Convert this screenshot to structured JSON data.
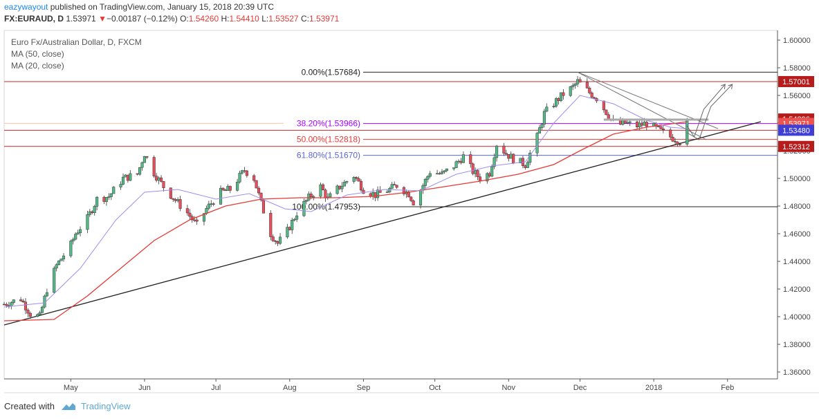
{
  "header": {
    "user": "eazywayout",
    "published": "published on TradingView.com, January 15, 2018 20:39 UTC",
    "symbol": "FX:EURAUD, D",
    "price": "1.53971",
    "change_arrow": "▼",
    "change": "−0.00187 (−0.12%)",
    "o_label": "O:",
    "o": "1.54260",
    "h_label": "H:",
    "h": "1.54410",
    "l_label": "L:",
    "l": "1.53527",
    "c_label": "C:",
    "c": "1.53971"
  },
  "legend": {
    "title": "Euro Fx/Australian Dollar, D, FXCM",
    "ma50": "MA (50, close)",
    "ma20": "MA (20, close)"
  },
  "footer": {
    "created": "Created with",
    "brand": "TradingView"
  },
  "colors": {
    "up": "#53b987",
    "down": "#eb4d5c",
    "ma50": "#e53935",
    "ma20": "#9c8ff0",
    "fib_purple": "#aa00ff",
    "fib_red": "#e53935",
    "fib_blue": "#5b63d6"
  },
  "chart_data": {
    "type": "candlestick",
    "title": "Euro Fx/Australian Dollar, D, FXCM",
    "ylim": [
      1.355,
      1.607
    ],
    "y_ticks": [
      "1.60000",
      "1.58000",
      "1.56000",
      "1.54000",
      "1.52000",
      "1.50000",
      "1.48000",
      "1.46000",
      "1.44000",
      "1.42000",
      "1.40000",
      "1.38000",
      "1.36000"
    ],
    "x_labels": [
      {
        "label": "May",
        "date": "2017-05-01"
      },
      {
        "label": "Jun",
        "date": "2017-06-01"
      },
      {
        "label": "Jul",
        "date": "2017-07-01"
      },
      {
        "label": "Aug",
        "date": "2017-08-01"
      },
      {
        "label": "Sep",
        "date": "2017-09-01"
      },
      {
        "label": "Oct",
        "date": "2017-10-01"
      },
      {
        "label": "Nov",
        "date": "2017-11-01"
      },
      {
        "label": "Dec",
        "date": "2017-12-01"
      },
      {
        "label": "2018",
        "date": "2018-01-01"
      },
      {
        "label": "Feb",
        "date": "2018-02-01"
      }
    ],
    "x_range": [
      "2017-04-03",
      "2018-02-22"
    ],
    "close_path": [
      [
        "2017-04-03",
        1.409
      ],
      [
        "2017-04-10",
        1.413
      ],
      [
        "2017-04-14",
        1.402
      ],
      [
        "2017-04-18",
        1.4
      ],
      [
        "2017-04-21",
        1.42
      ],
      [
        "2017-04-25",
        1.437
      ],
      [
        "2017-05-01",
        1.452
      ],
      [
        "2017-05-03",
        1.46
      ],
      [
        "2017-05-08",
        1.471
      ],
      [
        "2017-05-12",
        1.485
      ],
      [
        "2017-05-17",
        1.487
      ],
      [
        "2017-05-23",
        1.5
      ],
      [
        "2017-05-29",
        1.503
      ],
      [
        "2017-06-01",
        1.518
      ],
      [
        "2017-06-05",
        1.504
      ],
      [
        "2017-06-09",
        1.494
      ],
      [
        "2017-06-13",
        1.486
      ],
      [
        "2017-06-19",
        1.475
      ],
      [
        "2017-06-23",
        1.466
      ],
      [
        "2017-06-27",
        1.478
      ],
      [
        "2017-07-03",
        1.49
      ],
      [
        "2017-07-07",
        1.492
      ],
      [
        "2017-07-13",
        1.506
      ],
      [
        "2017-07-17",
        1.5
      ],
      [
        "2017-07-20",
        1.482
      ],
      [
        "2017-07-24",
        1.46
      ],
      [
        "2017-07-27",
        1.453
      ],
      [
        "2017-07-31",
        1.462
      ],
      [
        "2017-08-04",
        1.475
      ],
      [
        "2017-08-09",
        1.486
      ],
      [
        "2017-08-14",
        1.494
      ],
      [
        "2017-08-17",
        1.485
      ],
      [
        "2017-08-22",
        1.494
      ],
      [
        "2017-08-28",
        1.502
      ],
      [
        "2017-09-01",
        1.492
      ],
      [
        "2017-09-06",
        1.488
      ],
      [
        "2017-09-12",
        1.492
      ],
      [
        "2017-09-15",
        1.495
      ],
      [
        "2017-09-20",
        1.489
      ],
      [
        "2017-09-22",
        1.483
      ],
      [
        "2017-09-26",
        1.495
      ],
      [
        "2017-09-29",
        1.505
      ],
      [
        "2017-10-04",
        1.503
      ],
      [
        "2017-10-09",
        1.509
      ],
      [
        "2017-10-13",
        1.516
      ],
      [
        "2017-10-17",
        1.505
      ],
      [
        "2017-10-20",
        1.5
      ],
      [
        "2017-10-24",
        1.504
      ],
      [
        "2017-10-27",
        1.525
      ],
      [
        "2017-10-31",
        1.518
      ],
      [
        "2017-11-03",
        1.514
      ],
      [
        "2017-11-08",
        1.51
      ],
      [
        "2017-11-13",
        1.53
      ],
      [
        "2017-11-16",
        1.547
      ],
      [
        "2017-11-21",
        1.556
      ],
      [
        "2017-11-24",
        1.561
      ],
      [
        "2017-11-28",
        1.566
      ],
      [
        "2017-11-30",
        1.57
      ],
      [
        "2017-12-05",
        1.562
      ],
      [
        "2017-12-08",
        1.558
      ],
      [
        "2017-12-12",
        1.548
      ],
      [
        "2017-12-16",
        1.538
      ],
      [
        "2017-12-20",
        1.54
      ],
      [
        "2017-12-25",
        1.538
      ],
      [
        "2017-12-29",
        1.54
      ],
      [
        "2018-01-03",
        1.535
      ],
      [
        "2018-01-08",
        1.53
      ],
      [
        "2018-01-12",
        1.527
      ],
      [
        "2018-01-15",
        1.5397
      ]
    ],
    "fib_levels": [
      {
        "label": "0.00%(1.57684)",
        "value": 1.57684,
        "color": "#222"
      },
      {
        "label": "38.20%(1.53966)",
        "value": 1.53966,
        "color": "#aa00ff"
      },
      {
        "label": "50.00%(1.52818)",
        "value": 1.52818,
        "color": "#e53935"
      },
      {
        "label": "61.80%(1.51670)",
        "value": 1.5167,
        "color": "#5b63d6"
      },
      {
        "label": "100.00%(1.47953)",
        "value": 1.47953,
        "color": "#222"
      }
    ],
    "price_tags": [
      {
        "label": "1.57001",
        "value": 1.57001,
        "bg": "#b71c1c"
      },
      {
        "label": "1.54296",
        "value": 1.54296,
        "bg": "#b71c1c"
      },
      {
        "label": "1.53971",
        "value": 1.53971,
        "bg": "#ef5350"
      },
      {
        "label": "1.53480",
        "value": 1.5348,
        "bg": "#3f3fd6"
      },
      {
        "label": "1.52312",
        "value": 1.52312,
        "bg": "#b71c1c"
      }
    ],
    "horizontal_lines": [
      {
        "value": 1.57001,
        "color": "#c62828"
      },
      {
        "value": 1.5348,
        "color": "#c62828"
      },
      {
        "value": 1.52312,
        "color": "#c62828"
      }
    ],
    "trendline": {
      "from": [
        "2017-04-03",
        1.394
      ],
      "to": [
        "2018-02-15",
        1.541
      ]
    },
    "ma50": [
      [
        "2017-04-03",
        1.397
      ],
      [
        "2017-04-24",
        1.398
      ],
      [
        "2017-05-08",
        1.415
      ],
      [
        "2017-05-22",
        1.435
      ],
      [
        "2017-06-05",
        1.455
      ],
      [
        "2017-06-20",
        1.47
      ],
      [
        "2017-07-05",
        1.48
      ],
      [
        "2017-07-20",
        1.485
      ],
      [
        "2017-08-05",
        1.486
      ],
      [
        "2017-08-20",
        1.486
      ],
      [
        "2017-09-05",
        1.487
      ],
      [
        "2017-09-20",
        1.49
      ],
      [
        "2017-10-05",
        1.494
      ],
      [
        "2017-10-20",
        1.498
      ],
      [
        "2017-11-05",
        1.503
      ],
      [
        "2017-11-20",
        1.51
      ],
      [
        "2017-12-01",
        1.52
      ],
      [
        "2017-12-15",
        1.532
      ],
      [
        "2017-12-29",
        1.537
      ],
      [
        "2018-01-15",
        1.541
      ]
    ],
    "ma20": [
      [
        "2017-04-03",
        1.407
      ],
      [
        "2017-04-20",
        1.41
      ],
      [
        "2017-05-05",
        1.435
      ],
      [
        "2017-05-20",
        1.47
      ],
      [
        "2017-06-01",
        1.49
      ],
      [
        "2017-06-15",
        1.492
      ],
      [
        "2017-07-01",
        1.485
      ],
      [
        "2017-07-15",
        1.489
      ],
      [
        "2017-07-30",
        1.478
      ],
      [
        "2017-08-10",
        1.476
      ],
      [
        "2017-08-25",
        1.488
      ],
      [
        "2017-09-10",
        1.492
      ],
      [
        "2017-09-25",
        1.491
      ],
      [
        "2017-10-10",
        1.503
      ],
      [
        "2017-10-25",
        1.509
      ],
      [
        "2017-11-08",
        1.512
      ],
      [
        "2017-11-20",
        1.54
      ],
      [
        "2017-12-01",
        1.56
      ],
      [
        "2017-12-15",
        1.554
      ],
      [
        "2017-12-29",
        1.542
      ],
      [
        "2018-01-08",
        1.537
      ],
      [
        "2018-01-15",
        1.536
      ]
    ]
  }
}
